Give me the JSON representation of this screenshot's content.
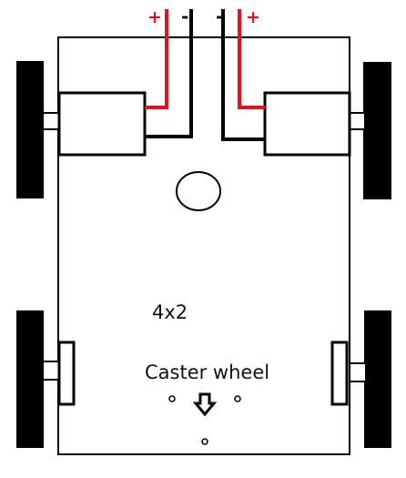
{
  "labels": {
    "left_plus": "+",
    "left_minus": "-",
    "right_minus": "-",
    "right_plus": "+",
    "board_size": "4x2",
    "caster": "Caster wheel"
  },
  "colors": {
    "positive_wire": "#e0141e",
    "negative_wire": "#000000",
    "outline": "#000000",
    "wheel": "#000000",
    "background": "#ffffff"
  }
}
